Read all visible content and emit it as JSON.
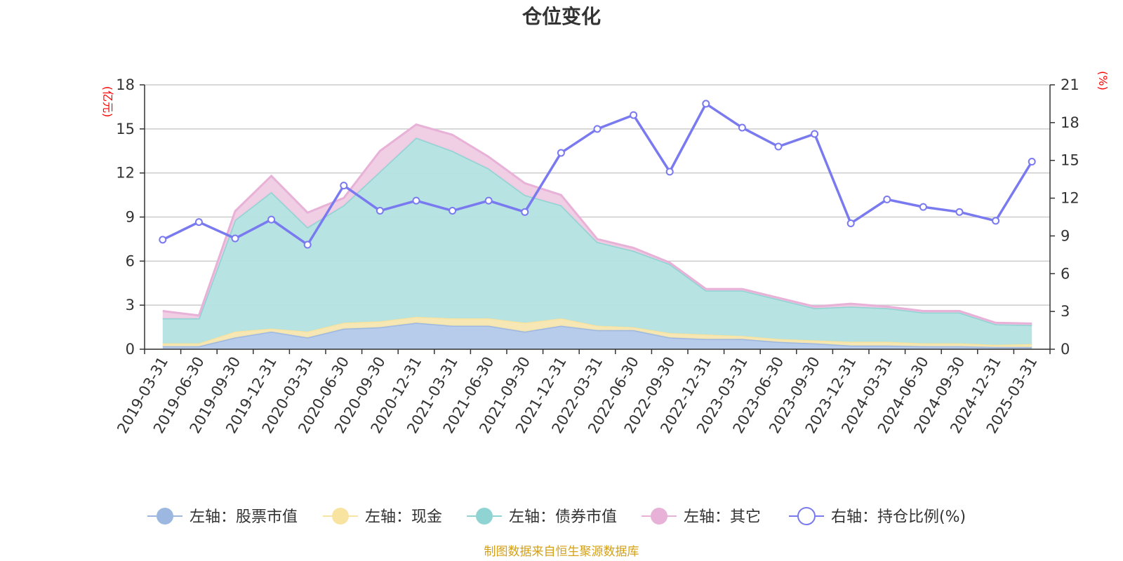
{
  "chart_data": {
    "type": "area",
    "title": "仓位变化",
    "left_axis": {
      "unit_label": "(亿元)",
      "ylim": [
        0,
        18
      ],
      "ticks": [
        "0",
        "3",
        "6",
        "9",
        "12",
        "15",
        "18"
      ]
    },
    "right_axis": {
      "unit_label": "(%)",
      "ylim": [
        0,
        21
      ],
      "ticks": [
        "0",
        "3",
        "6",
        "9",
        "12",
        "15",
        "18",
        "21"
      ]
    },
    "categories": [
      "2019-03-31",
      "2019-06-30",
      "2019-09-30",
      "2019-12-31",
      "2020-03-31",
      "2020-06-30",
      "2020-09-30",
      "2020-12-31",
      "2021-03-31",
      "2021-06-30",
      "2021-09-30",
      "2021-12-31",
      "2022-03-31",
      "2022-06-30",
      "2022-09-30",
      "2022-12-31",
      "2023-03-31",
      "2023-06-30",
      "2023-09-30",
      "2023-12-31",
      "2024-03-31",
      "2024-06-30",
      "2024-09-30",
      "2024-12-31",
      "2025-03-31"
    ],
    "series": [
      {
        "name": "左轴：股票市值",
        "axis": "left",
        "stacked": true,
        "color": "#9db8e0",
        "fill": "#b3c8ea",
        "values": [
          0.2,
          0.2,
          0.8,
          1.2,
          0.8,
          1.4,
          1.5,
          1.8,
          1.6,
          1.6,
          1.2,
          1.6,
          1.3,
          1.3,
          0.8,
          0.7,
          0.7,
          0.5,
          0.4,
          0.25,
          0.25,
          0.2,
          0.2,
          0.15,
          0.15
        ]
      },
      {
        "name": "左轴：现金",
        "axis": "left",
        "stacked": true,
        "color": "#f8e3a1",
        "fill": "#f6e6b0",
        "values": [
          0.2,
          0.2,
          0.4,
          0.2,
          0.4,
          0.4,
          0.4,
          0.4,
          0.5,
          0.5,
          0.6,
          0.5,
          0.3,
          0.2,
          0.3,
          0.3,
          0.2,
          0.2,
          0.2,
          0.25,
          0.25,
          0.2,
          0.2,
          0.15,
          0.2
        ]
      },
      {
        "name": "左轴：债券市值",
        "axis": "left",
        "stacked": true,
        "color": "#8fd3d3",
        "fill": "#b3e1e1",
        "values": [
          1.7,
          1.7,
          7.6,
          9.3,
          7.1,
          8.0,
          10.2,
          12.2,
          11.4,
          10.2,
          8.7,
          7.7,
          5.7,
          5.2,
          4.7,
          3.0,
          3.1,
          2.7,
          2.2,
          2.4,
          2.3,
          2.1,
          2.1,
          1.4,
          1.3
        ]
      },
      {
        "name": "左轴：其它",
        "axis": "left",
        "stacked": true,
        "color": "#e8b1d8",
        "fill": "#efcbe3",
        "values": [
          0.5,
          0.2,
          0.6,
          1.1,
          1.0,
          0.5,
          1.4,
          0.9,
          1.1,
          0.8,
          0.8,
          0.7,
          0.2,
          0.2,
          0.1,
          0.1,
          0.1,
          0.1,
          0.1,
          0.2,
          0.1,
          0.1,
          0.1,
          0.1,
          0.1
        ]
      },
      {
        "name": "右轴：持仓比例(%)",
        "axis": "right",
        "stacked": false,
        "color": "#7a7af0",
        "values": [
          8.7,
          10.1,
          8.8,
          10.3,
          8.3,
          13.0,
          11.0,
          11.8,
          11.0,
          11.8,
          10.9,
          15.6,
          17.5,
          18.6,
          14.1,
          19.5,
          17.6,
          16.1,
          17.1,
          10.0,
          11.9,
          11.3,
          10.9,
          10.2,
          14.9
        ]
      }
    ],
    "legend_position": "bottom",
    "grid": true
  },
  "footer": {
    "source": "制图数据来自恒生聚源数据库"
  }
}
